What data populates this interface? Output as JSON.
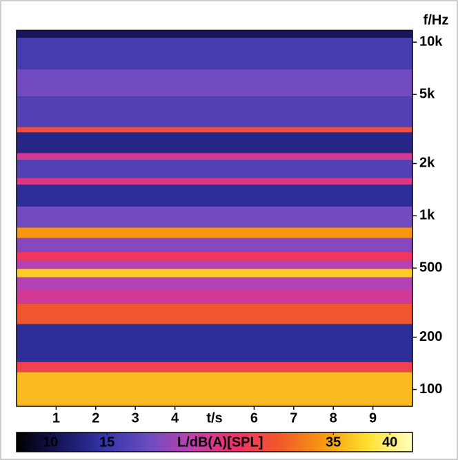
{
  "chart_data": {
    "type": "spectrogram",
    "x_label": "t/s",
    "y_label": "f/Hz",
    "colorbar_label": "L/dB(A)[SPL]",
    "xlim": [
      0,
      10
    ],
    "xticks": [
      1,
      2,
      3,
      4,
      6,
      7,
      8,
      9
    ],
    "ylim": [
      80,
      11700
    ],
    "log_y": true,
    "yticks": [
      100,
      200,
      500,
      {
        "value": 1000,
        "label": "1k"
      },
      {
        "value": 2000,
        "label": "2k"
      },
      {
        "value": 5000,
        "label": "5k"
      },
      {
        "value": 10000,
        "label": "10k"
      }
    ],
    "clim": [
      7,
      42
    ],
    "cticks": [
      10,
      15,
      35,
      40
    ],
    "colormap": [
      "#000000",
      "#16165e",
      "#3434a8",
      "#6a4cc0",
      "#c040b0",
      "#f0306a",
      "#f05a28",
      "#f89a10",
      "#ffe030",
      "#ffffc0"
    ],
    "bands": [
      {
        "f_low": 80,
        "f_high": 126,
        "level": 36
      },
      {
        "f_low": 126,
        "f_high": 144,
        "level": 28
      },
      {
        "f_low": 144,
        "f_high": 238,
        "level": 14
      },
      {
        "f_low": 238,
        "f_high": 313,
        "level": 30
      },
      {
        "f_low": 313,
        "f_high": 376,
        "level": 24
      },
      {
        "f_low": 376,
        "f_high": 443,
        "level": 22
      },
      {
        "f_low": 443,
        "f_high": 495,
        "level": 37
      },
      {
        "f_low": 495,
        "f_high": 552,
        "level": 22
      },
      {
        "f_low": 552,
        "f_high": 622,
        "level": 27
      },
      {
        "f_low": 622,
        "f_high": 746,
        "level": 20
      },
      {
        "f_low": 746,
        "f_high": 857,
        "level": 34
      },
      {
        "f_low": 857,
        "f_high": 1130,
        "level": 19
      },
      {
        "f_low": 1130,
        "f_high": 1510,
        "level": 14
      },
      {
        "f_low": 1510,
        "f_high": 1650,
        "level": 25
      },
      {
        "f_low": 1650,
        "f_high": 2100,
        "level": 17
      },
      {
        "f_low": 2100,
        "f_high": 2300,
        "level": 24
      },
      {
        "f_low": 2300,
        "f_high": 3020,
        "level": 13
      },
      {
        "f_low": 3020,
        "f_high": 3250,
        "level": 29
      },
      {
        "f_low": 3250,
        "f_high": 4860,
        "level": 17
      },
      {
        "f_low": 4860,
        "f_high": 7000,
        "level": 19
      },
      {
        "f_low": 7000,
        "f_high": 10600,
        "level": 16
      },
      {
        "f_low": 10600,
        "f_high": 11700,
        "level": 11
      }
    ]
  }
}
